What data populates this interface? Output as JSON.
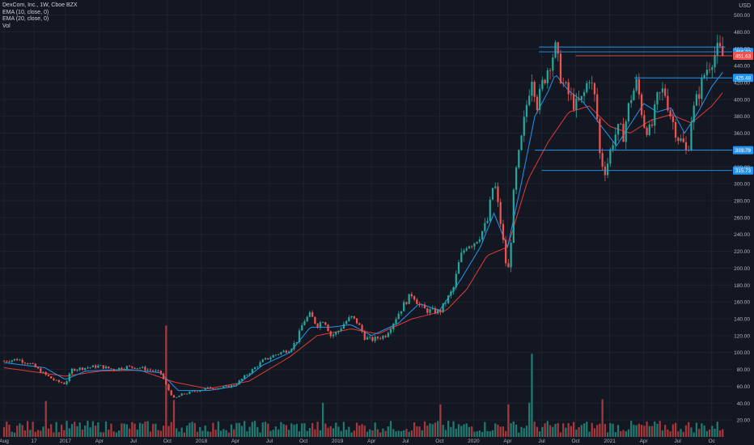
{
  "legend": {
    "title": "DexCom, Inc., 1W, Cboe BZX",
    "ema10": "EMA (10, close, 0)",
    "ema20": "EMA (20, close, 0)",
    "vol": "Vol"
  },
  "currency": "USD",
  "colors": {
    "background": "#131722",
    "grid": "#1f2330",
    "up": "#26a69a",
    "down": "#ef5350",
    "vol_up": "#1f7a70",
    "vol_down": "#a6373a",
    "ema10": "#2196f3",
    "ema20": "#e53935",
    "level_line": "#2196f3",
    "axis_text": "#b2b5be"
  },
  "chart_data": {
    "type": "candlestick",
    "interval": "1W",
    "y_axis": {
      "ticks": [
        20,
        40,
        60,
        80,
        100,
        120,
        140,
        160,
        180,
        200,
        220,
        240,
        260,
        280,
        300,
        320,
        340,
        360,
        380,
        400,
        420,
        440,
        460,
        480,
        500
      ],
      "range_top": 510,
      "side": "right"
    },
    "x_axis": {
      "ticks": [
        {
          "label": "Aug",
          "t": 0.0
        },
        {
          "label": "17",
          "t": 0.22
        },
        {
          "label": "2017",
          "t": 0.45
        },
        {
          "label": "Apr",
          "t": 0.7
        },
        {
          "label": "Jul",
          "t": 0.95
        },
        {
          "label": "Oct",
          "t": 1.2
        },
        {
          "label": "2018",
          "t": 1.45
        },
        {
          "label": "Apr",
          "t": 1.7
        },
        {
          "label": "Jul",
          "t": 1.95
        },
        {
          "label": "Oct",
          "t": 2.2
        },
        {
          "label": "2019",
          "t": 2.45
        },
        {
          "label": "Apr",
          "t": 2.7
        },
        {
          "label": "Jul",
          "t": 2.95
        },
        {
          "label": "Oct",
          "t": 3.2
        },
        {
          "label": "2020",
          "t": 3.45
        },
        {
          "label": "Apr",
          "t": 3.7
        },
        {
          "label": "Jul",
          "t": 3.95
        },
        {
          "label": "Oct",
          "t": 4.2
        },
        {
          "label": "2021",
          "t": 4.45
        },
        {
          "label": "Apr",
          "t": 4.7
        },
        {
          "label": "Jul",
          "t": 4.95
        },
        {
          "label": "Oc",
          "t": 5.2
        }
      ],
      "t_range": [
        -0.03,
        5.35
      ]
    },
    "price_path": [
      [
        0.0,
        90
      ],
      [
        0.1,
        92
      ],
      [
        0.2,
        86
      ],
      [
        0.3,
        74
      ],
      [
        0.38,
        66
      ],
      [
        0.45,
        63
      ],
      [
        0.5,
        80
      ],
      [
        0.6,
        82
      ],
      [
        0.7,
        84
      ],
      [
        0.8,
        80
      ],
      [
        0.9,
        83
      ],
      [
        1.0,
        82
      ],
      [
        1.1,
        78
      ],
      [
        1.15,
        76
      ],
      [
        1.2,
        58
      ],
      [
        1.25,
        45
      ],
      [
        1.3,
        50
      ],
      [
        1.4,
        54
      ],
      [
        1.5,
        58
      ],
      [
        1.6,
        58
      ],
      [
        1.7,
        62
      ],
      [
        1.8,
        76
      ],
      [
        1.9,
        90
      ],
      [
        2.0,
        98
      ],
      [
        2.1,
        104
      ],
      [
        2.15,
        114
      ],
      [
        2.2,
        137
      ],
      [
        2.25,
        145
      ],
      [
        2.3,
        132
      ],
      [
        2.35,
        140
      ],
      [
        2.4,
        120
      ],
      [
        2.45,
        124
      ],
      [
        2.5,
        135
      ],
      [
        2.55,
        142
      ],
      [
        2.6,
        135
      ],
      [
        2.65,
        118
      ],
      [
        2.7,
        115
      ],
      [
        2.8,
        120
      ],
      [
        2.85,
        133
      ],
      [
        2.9,
        147
      ],
      [
        2.95,
        160
      ],
      [
        3.0,
        170
      ],
      [
        3.05,
        156
      ],
      [
        3.1,
        150
      ],
      [
        3.2,
        148
      ],
      [
        3.3,
        175
      ],
      [
        3.35,
        212
      ],
      [
        3.4,
        228
      ],
      [
        3.45,
        230
      ],
      [
        3.5,
        240
      ],
      [
        3.55,
        254
      ],
      [
        3.6,
        305
      ],
      [
        3.65,
        252
      ],
      [
        3.7,
        190
      ],
      [
        3.72,
        222
      ],
      [
        3.75,
        302
      ],
      [
        3.8,
        350
      ],
      [
        3.85,
        405
      ],
      [
        3.88,
        430
      ],
      [
        3.92,
        392
      ],
      [
        3.95,
        415
      ],
      [
        4.0,
        440
      ],
      [
        4.05,
        460
      ],
      [
        4.1,
        420
      ],
      [
        4.15,
        405
      ],
      [
        4.2,
        392
      ],
      [
        4.25,
        400
      ],
      [
        4.3,
        428
      ],
      [
        4.35,
        395
      ],
      [
        4.38,
        330
      ],
      [
        4.42,
        315
      ],
      [
        4.48,
        356
      ],
      [
        4.52,
        365
      ],
      [
        4.55,
        358
      ],
      [
        4.6,
        400
      ],
      [
        4.65,
        420
      ],
      [
        4.7,
        372
      ],
      [
        4.75,
        360
      ],
      [
        4.8,
        400
      ],
      [
        4.85,
        412
      ],
      [
        4.9,
        380
      ],
      [
        4.95,
        356
      ],
      [
        5.0,
        345
      ],
      [
        5.02,
        332
      ],
      [
        5.05,
        378
      ],
      [
        5.1,
        405
      ],
      [
        5.15,
        432
      ],
      [
        5.2,
        448
      ],
      [
        5.25,
        459
      ],
      [
        5.28,
        451
      ]
    ],
    "ema10_path": [
      [
        0.0,
        88
      ],
      [
        0.3,
        82
      ],
      [
        0.45,
        68
      ],
      [
        0.6,
        78
      ],
      [
        0.9,
        80
      ],
      [
        1.15,
        76
      ],
      [
        1.28,
        55
      ],
      [
        1.5,
        55
      ],
      [
        1.7,
        60
      ],
      [
        1.9,
        85
      ],
      [
        2.1,
        100
      ],
      [
        2.25,
        130
      ],
      [
        2.4,
        130
      ],
      [
        2.55,
        133
      ],
      [
        2.7,
        120
      ],
      [
        2.9,
        135
      ],
      [
        3.05,
        158
      ],
      [
        3.2,
        150
      ],
      [
        3.35,
        185
      ],
      [
        3.5,
        225
      ],
      [
        3.6,
        265
      ],
      [
        3.7,
        225
      ],
      [
        3.8,
        300
      ],
      [
        3.9,
        380
      ],
      [
        4.0,
        410
      ],
      [
        4.05,
        430
      ],
      [
        4.15,
        410
      ],
      [
        4.25,
        398
      ],
      [
        4.38,
        370
      ],
      [
        4.5,
        345
      ],
      [
        4.6,
        370
      ],
      [
        4.7,
        395
      ],
      [
        4.8,
        385
      ],
      [
        4.9,
        390
      ],
      [
        5.0,
        360
      ],
      [
        5.1,
        385
      ],
      [
        5.2,
        415
      ],
      [
        5.28,
        432
      ]
    ],
    "ema20_path": [
      [
        0.0,
        82
      ],
      [
        0.45,
        72
      ],
      [
        0.7,
        78
      ],
      [
        1.0,
        79
      ],
      [
        1.25,
        65
      ],
      [
        1.5,
        57
      ],
      [
        1.8,
        66
      ],
      [
        2.1,
        95
      ],
      [
        2.3,
        120
      ],
      [
        2.55,
        128
      ],
      [
        2.75,
        122
      ],
      [
        3.0,
        140
      ],
      [
        3.25,
        150
      ],
      [
        3.4,
        175
      ],
      [
        3.55,
        215
      ],
      [
        3.7,
        225
      ],
      [
        3.85,
        305
      ],
      [
        4.0,
        350
      ],
      [
        4.15,
        385
      ],
      [
        4.3,
        392
      ],
      [
        4.45,
        368
      ],
      [
        4.6,
        360
      ],
      [
        4.75,
        375
      ],
      [
        4.9,
        382
      ],
      [
        5.05,
        372
      ],
      [
        5.2,
        392
      ],
      [
        5.28,
        408
      ]
    ],
    "volume_spikes": [
      {
        "t": 0.3,
        "v": 42
      },
      {
        "t": 1.2,
        "v": 130
      },
      {
        "t": 1.25,
        "v": 43
      },
      {
        "t": 2.35,
        "v": 40
      },
      {
        "t": 3.2,
        "v": 38
      },
      {
        "t": 3.7,
        "v": 38
      },
      {
        "t": 3.88,
        "v": 97
      },
      {
        "t": 3.85,
        "v": 40
      },
      {
        "t": 4.4,
        "v": 44
      }
    ],
    "horizontal_levels": [
      {
        "label": "456.33",
        "price": 456.33,
        "t_from": 3.93,
        "t_to": 5.35,
        "color": "#2196f3"
      },
      {
        "label": "451.63",
        "price": 451.63,
        "t_from": 4.2,
        "t_to": 5.35,
        "color": "#ef5350"
      },
      {
        "label": "425.48",
        "price": 425.48,
        "t_from": 4.63,
        "t_to": 5.35,
        "color": "#2196f3"
      },
      {
        "label": "339.79",
        "price": 339.79,
        "t_from": 3.9,
        "t_to": 5.35,
        "color": "#2196f3"
      },
      {
        "label": "315.73",
        "price": 315.73,
        "t_from": 3.95,
        "t_to": 5.35,
        "color": "#2196f3"
      }
    ],
    "upper_guide": {
      "price": 462,
      "t_from": 3.93,
      "t_to": 5.3
    }
  }
}
